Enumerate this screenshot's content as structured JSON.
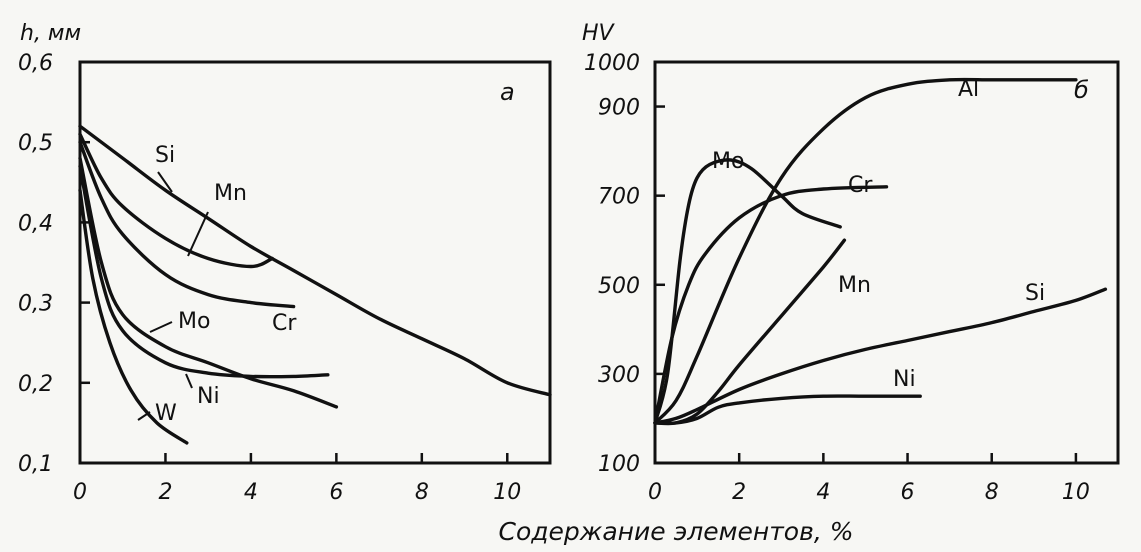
{
  "xlabel": "Содержание элементов, %",
  "chart_data": [
    {
      "type": "line",
      "panel": "а",
      "ylabel": "h, мм",
      "xlim": [
        0,
        11
      ],
      "ylim": [
        0.1,
        0.6
      ],
      "xticks": [
        0,
        2,
        4,
        6,
        8,
        10
      ],
      "xtick_labels": [
        "0",
        "2",
        "4",
        "6",
        "8",
        "10"
      ],
      "yticks": [
        0.1,
        0.2,
        0.3,
        0.4,
        0.5,
        0.6
      ],
      "ytick_labels": [
        "0,1",
        "0,2",
        "0,3",
        "0,4",
        "0,5",
        "0,6"
      ],
      "grid": false,
      "series": [
        {
          "name": "Si",
          "x": [
            0,
            1,
            2,
            3,
            4,
            5,
            6,
            7,
            8,
            9,
            10,
            11
          ],
          "y": [
            0.52,
            0.48,
            0.44,
            0.405,
            0.37,
            0.34,
            0.31,
            0.28,
            0.255,
            0.23,
            0.2,
            0.185
          ]
        },
        {
          "name": "Mn",
          "x": [
            0,
            0.5,
            1,
            2,
            3,
            4,
            4.5
          ],
          "y": [
            0.51,
            0.455,
            0.42,
            0.38,
            0.355,
            0.345,
            0.355
          ]
        },
        {
          "name": "Cr",
          "x": [
            0,
            0.5,
            1,
            2,
            3,
            4,
            5
          ],
          "y": [
            0.5,
            0.43,
            0.385,
            0.335,
            0.31,
            0.3,
            0.295
          ]
        },
        {
          "name": "Mo",
          "x": [
            0,
            0.5,
            1,
            2,
            3,
            4,
            5,
            6
          ],
          "y": [
            0.48,
            0.35,
            0.285,
            0.245,
            0.225,
            0.205,
            0.19,
            0.17
          ]
        },
        {
          "name": "Ni",
          "x": [
            0,
            0.5,
            1,
            2,
            3,
            4,
            5,
            5.8
          ],
          "y": [
            0.47,
            0.33,
            0.265,
            0.225,
            0.212,
            0.208,
            0.208,
            0.21
          ]
        },
        {
          "name": "W",
          "x": [
            0,
            0.3,
            0.7,
            1.2,
            1.8,
            2.5
          ],
          "y": [
            0.44,
            0.33,
            0.25,
            0.19,
            0.15,
            0.125
          ]
        }
      ]
    },
    {
      "type": "line",
      "panel": "б",
      "ylabel": "HV",
      "xlim": [
        0,
        11
      ],
      "ylim": [
        100,
        1000
      ],
      "xticks": [
        0,
        2,
        4,
        6,
        8,
        10
      ],
      "xtick_labels": [
        "0",
        "2",
        "4",
        "6",
        "8",
        "10"
      ],
      "yticks": [
        100,
        300,
        500,
        700,
        900,
        1000
      ],
      "ytick_labels": [
        "100",
        "300",
        "500",
        "700",
        "900",
        "1000"
      ],
      "grid": false,
      "series": [
        {
          "name": "Al",
          "x": [
            0,
            0.5,
            1,
            2,
            3,
            4,
            5,
            6,
            7,
            8,
            9,
            10
          ],
          "y": [
            190,
            240,
            340,
            560,
            740,
            850,
            920,
            950,
            960,
            960,
            960,
            960
          ]
        },
        {
          "name": "Mo",
          "x": [
            0,
            0.3,
            0.6,
            0.8,
            1,
            1.3,
            1.8,
            2.3,
            3,
            3.5,
            4.4
          ],
          "y": [
            190,
            300,
            560,
            680,
            740,
            770,
            780,
            760,
            700,
            660,
            630
          ]
        },
        {
          "name": "Cr",
          "x": [
            0,
            0.4,
            0.8,
            1.2,
            2,
            3,
            4,
            5.5
          ],
          "y": [
            190,
            380,
            500,
            570,
            650,
            700,
            715,
            720
          ]
        },
        {
          "name": "Mn",
          "x": [
            0,
            0.5,
            1,
            1.5,
            2,
            3,
            4,
            4.5
          ],
          "y": [
            190,
            190,
            210,
            260,
            320,
            430,
            540,
            600
          ]
        },
        {
          "name": "Si",
          "x": [
            0,
            0.5,
            1,
            2,
            3,
            4,
            5,
            6,
            7,
            8,
            9,
            10,
            10.7
          ],
          "y": [
            190,
            200,
            220,
            265,
            300,
            330,
            355,
            375,
            395,
            415,
            440,
            465,
            490
          ]
        },
        {
          "name": "Ni",
          "x": [
            0,
            0.5,
            1,
            1.5,
            2,
            3,
            4,
            5,
            6.3
          ],
          "y": [
            190,
            190,
            200,
            225,
            235,
            245,
            250,
            250,
            250
          ]
        }
      ]
    }
  ]
}
